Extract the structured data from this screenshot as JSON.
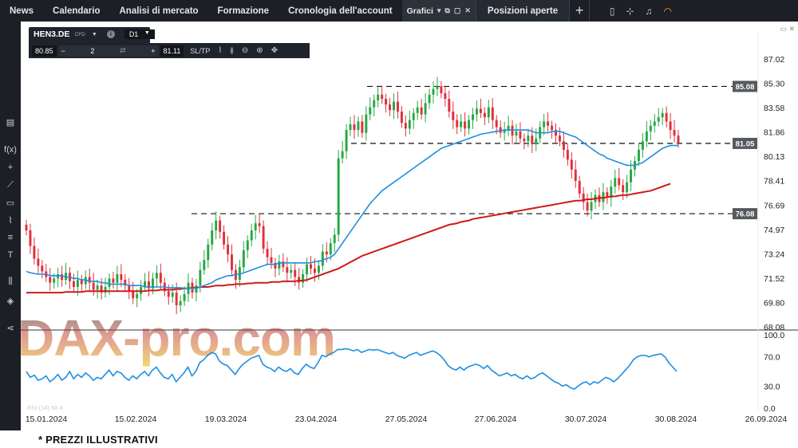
{
  "topbar": {
    "tabs": [
      {
        "label": "News"
      },
      {
        "label": "Calendario"
      },
      {
        "label": "Analisi di mercato"
      },
      {
        "label": "Formazione"
      },
      {
        "label": "Cronologia dell'account"
      }
    ],
    "active_tab": "Grafici",
    "second_tab": "Posizioni aperte",
    "plus_label": "+",
    "icons": [
      "layout-icon",
      "network-icon",
      "bell-icon",
      "signal-icon"
    ]
  },
  "instrument": {
    "symbol": "HEN3.DE",
    "type_badge": "CFD",
    "timeframe": "D1",
    "sell_price": "80.85",
    "quantity": "2",
    "buy_price": "81.11",
    "sltp_label": "SL/TP"
  },
  "chart_data": {
    "type": "candlestick",
    "y_ticks": [
      "87.02",
      "85.30",
      "83.58",
      "81.86",
      "80.13",
      "78.41",
      "76.69",
      "74.97",
      "73.24",
      "71.52",
      "69.80",
      "68.08"
    ],
    "ylim": [
      68.08,
      87.02
    ],
    "x_ticks": [
      "15.01.2024",
      "15.02.2024",
      "19.03.2024",
      "23.04.2024",
      "27.05.2024",
      "27.06.2024",
      "30.07.2024",
      "30.08.2024",
      "26.09.2024"
    ],
    "level_tags": [
      "85.08",
      "81.05",
      "76.08"
    ],
    "levels": [
      85.08,
      81.05,
      76.08
    ],
    "close": [
      74.9,
      73.8,
      72.9,
      72.4,
      72.0,
      71.6,
      71.2,
      71.5,
      71.8,
      71.4,
      71.9,
      71.3,
      70.9,
      71.4,
      71.1,
      71.6,
      71.2,
      70.7,
      71.0,
      70.5,
      70.9,
      71.5,
      71.2,
      71.8,
      71.4,
      71.0,
      70.6,
      70.1,
      70.4,
      70.9,
      71.3,
      70.8,
      71.5,
      71.9,
      71.2,
      70.6,
      70.2,
      70.5,
      69.6,
      69.9,
      70.4,
      71.2,
      70.5,
      71.0,
      72.1,
      72.8,
      73.9,
      74.9,
      75.6,
      74.8,
      73.9,
      73.2,
      72.1,
      71.4,
      72.3,
      73.5,
      74.2,
      74.9,
      75.4,
      75.2,
      73.6,
      73.0,
      72.6,
      72.2,
      72.7,
      72.3,
      71.9,
      72.1,
      71.6,
      71.2,
      71.8,
      72.5,
      72.2,
      71.9,
      72.4,
      73.4,
      73.2,
      74.0,
      74.6,
      80.0,
      80.5,
      82.0,
      82.4,
      82.0,
      82.6,
      81.8,
      83.1,
      83.6,
      84.1,
      84.5,
      84.2,
      83.8,
      83.4,
      84.0,
      83.3,
      82.5,
      82.1,
      82.7,
      83.2,
      83.6,
      83.1,
      83.9,
      84.5,
      84.9,
      85.1,
      84.6,
      84.2,
      83.3,
      82.7,
      82.2,
      82.6,
      82.1,
      82.7,
      83.1,
      83.5,
      83.2,
      82.9,
      83.6,
      82.7,
      82.2,
      81.8,
      82.0,
      82.3,
      81.6,
      81.9,
      81.4,
      81.2,
      81.6,
      81.0,
      81.4,
      82.2,
      82.6,
      82.3,
      82.0,
      81.6,
      81.2,
      80.6,
      79.9,
      79.2,
      78.4,
      77.5,
      76.9,
      76.3,
      76.9,
      77.4,
      76.9,
      77.6,
      77.2,
      78.0,
      78.6,
      78.1,
      77.6,
      78.3,
      79.2,
      79.8,
      80.6,
      81.2,
      81.9,
      82.3,
      82.6,
      82.9,
      83.2,
      82.6,
      82.0,
      81.6,
      81.1
    ],
    "ma50": [
      72.0,
      71.9,
      71.85,
      71.8,
      71.8,
      71.8,
      71.7,
      71.7,
      71.7,
      71.7,
      71.6,
      71.6,
      71.5,
      71.5,
      71.4,
      71.4,
      71.3,
      71.3,
      71.3,
      71.2,
      71.2,
      71.1,
      71.1,
      71.1,
      71.1,
      71.1,
      71.0,
      71.0,
      71.0,
      71.0,
      70.9,
      70.9,
      70.9,
      70.9,
      70.9,
      70.9,
      70.85,
      70.85,
      70.85,
      70.85,
      70.8,
      70.8,
      70.8,
      70.8,
      70.9,
      71.0,
      71.1,
      71.2,
      71.4,
      71.5,
      71.6,
      71.7,
      71.7,
      71.8,
      71.8,
      71.9,
      72.0,
      72.1,
      72.2,
      72.3,
      72.4,
      72.5,
      72.5,
      72.5,
      72.6,
      72.6,
      72.6,
      72.6,
      72.6,
      72.6,
      72.6,
      72.6,
      72.6,
      72.7,
      72.7,
      72.8,
      72.9,
      73.0,
      73.2,
      73.6,
      74.0,
      74.4,
      74.8,
      75.2,
      75.6,
      76.0,
      76.4,
      76.8,
      77.1,
      77.4,
      77.7,
      77.9,
      78.1,
      78.3,
      78.5,
      78.7,
      78.9,
      79.1,
      79.3,
      79.5,
      79.7,
      79.9,
      80.1,
      80.3,
      80.5,
      80.7,
      80.8,
      80.9,
      81.0,
      81.1,
      81.2,
      81.3,
      81.4,
      81.5,
      81.6,
      81.7,
      81.75,
      81.8,
      81.85,
      81.9,
      81.95,
      82.0,
      82.0,
      82.0,
      82.0,
      82.0,
      82.0,
      82.0,
      81.9,
      81.8,
      81.8,
      81.8,
      81.8,
      81.9,
      81.9,
      81.9,
      81.8,
      81.7,
      81.6,
      81.5,
      81.3,
      81.1,
      80.9,
      80.7,
      80.5,
      80.3,
      80.2,
      80.0,
      79.9,
      79.8,
      79.7,
      79.6,
      79.5,
      79.5,
      79.5,
      79.6,
      79.7,
      79.9,
      80.1,
      80.3,
      80.5,
      80.7,
      80.8,
      80.9,
      80.9,
      80.9
    ],
    "ma200": [
      70.5,
      70.5,
      70.5,
      70.5,
      70.5,
      70.5,
      70.5,
      70.5,
      70.5,
      70.5,
      70.55,
      70.55,
      70.55,
      70.55,
      70.55,
      70.6,
      70.6,
      70.6,
      70.6,
      70.6,
      70.6,
      70.6,
      70.6,
      70.6,
      70.6,
      70.6,
      70.6,
      70.6,
      70.6,
      70.6,
      70.6,
      70.65,
      70.65,
      70.65,
      70.7,
      70.7,
      70.7,
      70.7,
      70.75,
      70.75,
      70.8,
      70.8,
      70.85,
      70.85,
      70.9,
      70.9,
      70.9,
      70.95,
      71.0,
      71.0,
      71.0,
      71.05,
      71.05,
      71.1,
      71.1,
      71.1,
      71.15,
      71.15,
      71.2,
      71.2,
      71.2,
      71.2,
      71.25,
      71.25,
      71.25,
      71.3,
      71.3,
      71.3,
      71.3,
      71.35,
      71.35,
      71.4,
      71.5,
      71.6,
      71.7,
      71.8,
      71.9,
      72.0,
      72.1,
      72.2,
      72.35,
      72.5,
      72.65,
      72.8,
      72.95,
      73.1,
      73.2,
      73.3,
      73.4,
      73.5,
      73.6,
      73.7,
      73.8,
      73.9,
      74.0,
      74.1,
      74.2,
      74.3,
      74.4,
      74.5,
      74.6,
      74.7,
      74.8,
      74.9,
      75.0,
      75.1,
      75.2,
      75.3,
      75.35,
      75.4,
      75.5,
      75.55,
      75.6,
      75.7,
      75.75,
      75.8,
      75.85,
      75.9,
      75.95,
      76.0,
      76.05,
      76.1,
      76.15,
      76.2,
      76.25,
      76.3,
      76.35,
      76.4,
      76.45,
      76.5,
      76.55,
      76.6,
      76.65,
      76.7,
      76.75,
      76.8,
      76.85,
      76.9,
      76.95,
      77.0,
      77.0,
      77.05,
      77.1,
      77.1,
      77.15,
      77.2,
      77.2,
      77.25,
      77.3,
      77.3,
      77.35,
      77.4,
      77.4,
      77.45,
      77.5,
      77.55,
      77.6,
      77.65,
      77.7,
      77.8,
      77.9,
      78.0,
      78.1,
      78.2
    ],
    "rsi": {
      "label": "RSI (14) 50.4",
      "y_ticks": [
        "100.0",
        "70.0",
        "30.0",
        "0.0"
      ],
      "values": [
        50,
        42,
        45,
        38,
        40,
        44,
        36,
        40,
        46,
        38,
        42,
        50,
        40,
        46,
        42,
        48,
        44,
        38,
        42,
        40,
        46,
        52,
        44,
        50,
        48,
        42,
        38,
        44,
        40,
        46,
        50,
        44,
        52,
        56,
        48,
        42,
        40,
        46,
        36,
        42,
        48,
        56,
        44,
        50,
        62,
        66,
        72,
        76,
        74,
        64,
        60,
        58,
        52,
        46,
        54,
        60,
        64,
        68,
        70,
        72,
        60,
        56,
        54,
        50,
        56,
        52,
        50,
        54,
        48,
        46,
        54,
        60,
        56,
        54,
        62,
        72,
        70,
        74,
        76,
        80,
        80,
        81,
        80,
        78,
        80,
        76,
        78,
        80,
        79,
        80,
        78,
        76,
        74,
        76,
        72,
        70,
        68,
        72,
        74,
        76,
        72,
        74,
        76,
        78,
        76,
        72,
        66,
        58,
        54,
        52,
        56,
        52,
        56,
        58,
        60,
        58,
        54,
        58,
        52,
        48,
        44,
        46,
        48,
        44,
        46,
        42,
        40,
        44,
        40,
        42,
        46,
        48,
        44,
        40,
        36,
        34,
        30,
        32,
        28,
        26,
        30,
        34,
        36,
        32,
        36,
        34,
        38,
        42,
        40,
        36,
        40,
        46,
        52,
        58,
        66,
        70,
        72,
        72,
        70,
        72,
        73,
        74,
        70,
        62,
        56,
        50
      ]
    }
  },
  "watermark": "DAX-pro.com",
  "footer": {
    "note": "* PREZZI ILLUSTRATIVI"
  },
  "colors": {
    "up": "#27a844",
    "down": "#e0303c",
    "ma50": "#1e8fe1",
    "ma200": "#cc1b1b",
    "rsi": "#1e8fe1"
  }
}
